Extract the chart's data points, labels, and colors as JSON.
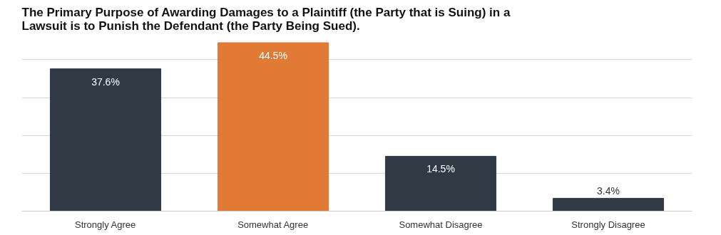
{
  "chart_data": {
    "type": "bar",
    "title": "The Primary Purpose of Awarding Damages to a Plaintiff (the Party that is Suing) in a Lawsuit is to Punish the Defendant (the Party Being Sued).",
    "categories": [
      "Strongly Agree",
      "Somewhat Agree",
      "Somewhat Disagree",
      "Strongly Disagree"
    ],
    "values": [
      37.6,
      44.5,
      14.5,
      3.4
    ],
    "colors": [
      "#2f3a45",
      "#e07a35",
      "#2f3a45",
      "#2f3a45"
    ],
    "value_labels": [
      "37.6%",
      "44.5%",
      "14.5%",
      "3.4%"
    ],
    "yticks": [
      {
        "value": 0,
        "label": null
      },
      {
        "value": 10,
        "label": null
      },
      {
        "value": 20,
        "label": null
      },
      {
        "value": 30,
        "label": null
      },
      {
        "value": 40,
        "label": null
      }
    ],
    "tick_labels": "x",
    "grid": "y"
  }
}
